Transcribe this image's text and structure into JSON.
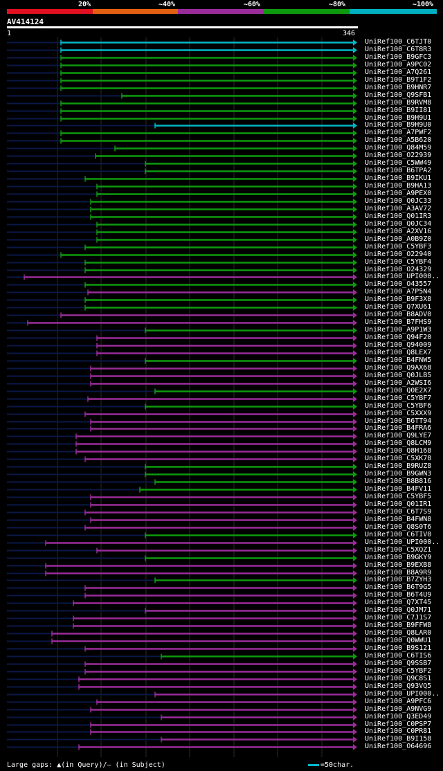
{
  "legend": {
    "labels": [
      "20%",
      "~40%",
      "~60%",
      "~80%",
      "~100%"
    ],
    "colors": [
      "#e01020",
      "#e06010",
      "#9a2c9a",
      "#0e9a0e",
      "#00b0c0"
    ]
  },
  "query": {
    "name": "AV414124",
    "start": "1",
    "end": "346"
  },
  "footer": {
    "gaps_text": "Large gaps: ▲(in Query)/— (in Subject)",
    "scale_text": "=50char."
  },
  "hits": [
    {
      "name": "UniRef100_C6TJT0",
      "color": "cyan",
      "start": 88,
      "dark_start": 10
    },
    {
      "name": "UniRef100_C6T8R3",
      "color": "cyan",
      "start": 88,
      "dark_start": 10
    },
    {
      "name": "UniRef100_B9GFC3",
      "color": "green",
      "start": 88,
      "dark_start": 10
    },
    {
      "name": "UniRef100_A9PC02",
      "color": "green",
      "start": 88,
      "dark_start": 10
    },
    {
      "name": "UniRef100_A7Q261",
      "color": "green",
      "start": 88,
      "dark_start": 10
    },
    {
      "name": "UniRef100_B9T1F2",
      "color": "green",
      "start": 88,
      "dark_start": 10
    },
    {
      "name": "UniRef100_B9HNR7",
      "color": "green",
      "start": 88,
      "dark_start": 10
    },
    {
      "name": "UniRef100_Q9SFB1",
      "color": "green",
      "start": 176,
      "dark_start": 10
    },
    {
      "name": "UniRef100_B9RVM8",
      "color": "green",
      "start": 88,
      "dark_start": 10
    },
    {
      "name": "UniRef100_B9II81",
      "color": "green",
      "start": 88,
      "dark_start": 10
    },
    {
      "name": "UniRef100_B9H9U1",
      "color": "green",
      "start": 88,
      "dark_start": 10
    },
    {
      "name": "UniRef100_B9H9U0",
      "color": "cyan",
      "start": 224,
      "dark_start": 10
    },
    {
      "name": "UniRef100_A7PWF2",
      "color": "green",
      "start": 88,
      "dark_start": 10
    },
    {
      "name": "UniRef100_A5B620",
      "color": "green",
      "start": 88,
      "dark_start": 10
    },
    {
      "name": "UniRef100_Q84M59",
      "color": "green",
      "start": 166,
      "dark_start": 10
    },
    {
      "name": "UniRef100_O22939",
      "color": "green",
      "start": 138,
      "dark_start": 10
    },
    {
      "name": "UniRef100_C5WW49",
      "color": "green",
      "start": 210,
      "dark_start": 10
    },
    {
      "name": "UniRef100_B6TPA2",
      "color": "green",
      "start": 210,
      "dark_start": 10
    },
    {
      "name": "UniRef100_B9IKU1",
      "color": "green",
      "start": 123,
      "dark_start": 10
    },
    {
      "name": "UniRef100_B9HA13",
      "color": "green",
      "start": 140,
      "dark_start": 10
    },
    {
      "name": "UniRef100_A9PEX0",
      "color": "green",
      "start": 140,
      "dark_start": 10
    },
    {
      "name": "UniRef100_Q0JC33",
      "color": "green",
      "start": 131,
      "dark_start": 10
    },
    {
      "name": "UniRef100_A3AV72",
      "color": "green",
      "start": 131,
      "dark_start": 10
    },
    {
      "name": "UniRef100_Q01IR3",
      "color": "green",
      "start": 131,
      "dark_start": 10
    },
    {
      "name": "UniRef100_Q0JC34",
      "color": "green",
      "start": 140,
      "dark_start": 10
    },
    {
      "name": "UniRef100_A2XV16",
      "color": "green",
      "start": 140,
      "dark_start": 10
    },
    {
      "name": "UniRef100_A0B9Z0",
      "color": "green",
      "start": 140,
      "dark_start": 10
    },
    {
      "name": "UniRef100_C5YBF3",
      "color": "green",
      "start": 123,
      "dark_start": 10
    },
    {
      "name": "UniRef100_O22940",
      "color": "green",
      "start": 88,
      "dark_start": 10
    },
    {
      "name": "UniRef100_C5YBF4",
      "color": "green",
      "start": 123,
      "dark_start": 10
    },
    {
      "name": "UniRef100_O24329",
      "color": "green",
      "start": 123,
      "dark_start": 10
    },
    {
      "name": "UniRef100_UPI000..",
      "color": "purple",
      "start": 35,
      "dark_start": 10
    },
    {
      "name": "UniRef100_O43557",
      "color": "green",
      "start": 123,
      "dark_start": 10
    },
    {
      "name": "UniRef100_A7P5N4",
      "color": "purple",
      "start": 127,
      "dark_start": 10
    },
    {
      "name": "UniRef100_B9F3X8",
      "color": "green",
      "start": 123,
      "dark_start": 10
    },
    {
      "name": "UniRef100_Q7XU61",
      "color": "green",
      "start": 123,
      "dark_start": 10
    },
    {
      "name": "UniRef100_B8ADV0",
      "color": "purple",
      "start": 88,
      "dark_start": 10
    },
    {
      "name": "UniRef100_B7FHS9",
      "color": "purple",
      "start": 40,
      "dark_start": 10
    },
    {
      "name": "UniRef100_A9P1W3",
      "color": "green",
      "start": 210,
      "dark_start": 10
    },
    {
      "name": "UniRef100_Q94F20",
      "color": "purple",
      "start": 140,
      "dark_start": 10
    },
    {
      "name": "UniRef100_Q94009",
      "color": "purple",
      "start": 140,
      "dark_start": 10
    },
    {
      "name": "UniRef100_Q8LEX7",
      "color": "purple",
      "start": 140,
      "dark_start": 10
    },
    {
      "name": "UniRef100_B4FNW5",
      "color": "green",
      "start": 210,
      "dark_start": 10
    },
    {
      "name": "UniRef100_Q9AX68",
      "color": "purple",
      "start": 131,
      "dark_start": 10
    },
    {
      "name": "UniRef100_Q0JLB5",
      "color": "purple",
      "start": 131,
      "dark_start": 10
    },
    {
      "name": "UniRef100_A2WSI6",
      "color": "purple",
      "start": 131,
      "dark_start": 10
    },
    {
      "name": "UniRef100_Q0E2X7",
      "color": "green",
      "start": 224,
      "dark_start": 10
    },
    {
      "name": "UniRef100_C5YBF7",
      "color": "purple",
      "start": 127,
      "dark_start": 10
    },
    {
      "name": "UniRef100_C5YBF6",
      "color": "green",
      "start": 210,
      "dark_start": 10
    },
    {
      "name": "UniRef100_C5XXX9",
      "color": "purple",
      "start": 123,
      "dark_start": 10
    },
    {
      "name": "UniRef100_B6TT94",
      "color": "purple",
      "start": 131,
      "dark_start": 10
    },
    {
      "name": "UniRef100_B4FRA6",
      "color": "purple",
      "start": 131,
      "dark_start": 10
    },
    {
      "name": "UniRef100_Q9LYE7",
      "color": "purple",
      "start": 110,
      "dark_start": 10
    },
    {
      "name": "UniRef100_Q8LCM9",
      "color": "purple",
      "start": 110,
      "dark_start": 10
    },
    {
      "name": "UniRef100_Q8H168",
      "color": "purple",
      "start": 110,
      "dark_start": 10
    },
    {
      "name": "UniRef100_C5XK78",
      "color": "purple",
      "start": 123,
      "dark_start": 10
    },
    {
      "name": "UniRef100_B9RUZ8",
      "color": "green",
      "start": 210,
      "dark_start": 10
    },
    {
      "name": "UniRef100_B9GWN3",
      "color": "green",
      "start": 210,
      "dark_start": 10
    },
    {
      "name": "UniRef100_B8B816",
      "color": "green",
      "start": 224,
      "dark_start": 10
    },
    {
      "name": "UniRef100_B4FV11",
      "color": "green",
      "start": 202,
      "dark_start": 10
    },
    {
      "name": "UniRef100_C5YBF5",
      "color": "purple",
      "start": 131,
      "dark_start": 10
    },
    {
      "name": "UniRef100_Q01IR1",
      "color": "purple",
      "start": 131,
      "dark_start": 10
    },
    {
      "name": "UniRef100_C6T7S9",
      "color": "purple",
      "start": 123,
      "dark_start": 10
    },
    {
      "name": "UniRef100_B4FWN8",
      "color": "purple",
      "start": 131,
      "dark_start": 10
    },
    {
      "name": "UniRef100_Q8S0T6",
      "color": "purple",
      "start": 123,
      "dark_start": 10
    },
    {
      "name": "UniRef100_C6TIV0",
      "color": "green",
      "start": 210,
      "dark_start": 10
    },
    {
      "name": "UniRef100_UPI000..",
      "color": "purple",
      "start": 66,
      "dark_start": 10
    },
    {
      "name": "UniRef100_C5XQZ1",
      "color": "purple",
      "start": 140,
      "dark_start": 10
    },
    {
      "name": "UniRef100_B9GKY9",
      "color": "green",
      "start": 210,
      "dark_start": 10
    },
    {
      "name": "UniRef100_B9EXB8",
      "color": "purple",
      "start": 66,
      "dark_start": 10
    },
    {
      "name": "UniRef100_B8A9R9",
      "color": "purple",
      "start": 66,
      "dark_start": 10
    },
    {
      "name": "UniRef100_B7ZYH3",
      "color": "green",
      "start": 224,
      "dark_start": 10
    },
    {
      "name": "UniRef100_B6T9G5",
      "color": "purple",
      "start": 123,
      "dark_start": 10
    },
    {
      "name": "UniRef100_B6T4U9",
      "color": "purple",
      "start": 123,
      "dark_start": 10
    },
    {
      "name": "UniRef100_Q7XT45",
      "color": "purple",
      "start": 106,
      "dark_start": 10
    },
    {
      "name": "UniRef100_Q0JM71",
      "color": "purple",
      "start": 210,
      "dark_start": 10
    },
    {
      "name": "UniRef100_C7J1S7",
      "color": "purple",
      "start": 106,
      "dark_start": 10
    },
    {
      "name": "UniRef100_B9FFW8",
      "color": "purple",
      "start": 106,
      "dark_start": 10
    },
    {
      "name": "UniRef100_Q8LAR0",
      "color": "purple",
      "start": 75,
      "dark_start": 10
    },
    {
      "name": "UniRef100_Q0WWU1",
      "color": "purple",
      "start": 75,
      "dark_start": 10
    },
    {
      "name": "UniRef100_B9S121",
      "color": "purple",
      "start": 123,
      "dark_start": 10
    },
    {
      "name": "UniRef100_C6TIS6",
      "color": "green",
      "start": 233,
      "dark_start": 10
    },
    {
      "name": "UniRef100_Q9SSB7",
      "color": "purple",
      "start": 123,
      "dark_start": 10
    },
    {
      "name": "UniRef100_C5YBF2",
      "color": "purple",
      "start": 123,
      "dark_start": 10
    },
    {
      "name": "UniRef100_Q9C8S1",
      "color": "purple",
      "start": 114,
      "dark_start": 10
    },
    {
      "name": "UniRef100_Q93VQ5",
      "color": "purple",
      "start": 114,
      "dark_start": 10
    },
    {
      "name": "UniRef100_UPI000..",
      "color": "purple",
      "start": 224,
      "dark_start": 10
    },
    {
      "name": "UniRef100_A9PFC6",
      "color": "purple",
      "start": 140,
      "dark_start": 10
    },
    {
      "name": "UniRef100_A9NVG9",
      "color": "purple",
      "start": 131,
      "dark_start": 10
    },
    {
      "name": "UniRef100_Q3ED49",
      "color": "purple",
      "start": 233,
      "dark_start": 10
    },
    {
      "name": "UniRef100_C0PSP7",
      "color": "purple",
      "start": 131,
      "dark_start": 10
    },
    {
      "name": "UniRef100_C0PR81",
      "color": "purple",
      "start": 131,
      "dark_start": 10
    },
    {
      "name": "UniRef100_B9I158",
      "color": "purple",
      "start": 233,
      "dark_start": 10
    },
    {
      "name": "UniRef100_O64696",
      "color": "purple",
      "start": 114,
      "dark_start": 10
    }
  ],
  "palette": {
    "cyan": "#00b8c8",
    "green": "#0e9a0e",
    "purple": "#9a2c9a",
    "dark": "#0a1848",
    "grid": "#2a2a2a"
  }
}
